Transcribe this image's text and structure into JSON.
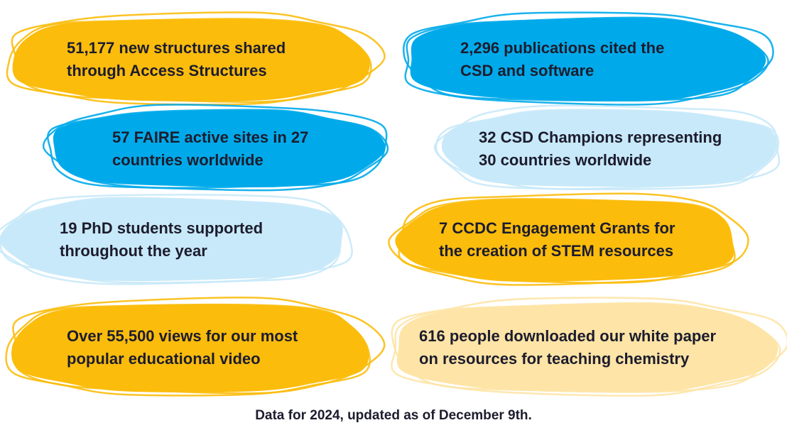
{
  "colors": {
    "yellow": "#fbbc0c",
    "blue": "#00aaea",
    "light_blue": "#c8e9f9",
    "pale_yellow": "#fee4a6",
    "text": "#1c1c2e"
  },
  "stats": [
    {
      "id": "structures",
      "text": "51,177 new structures shared\nthrough Access Structures",
      "color": "#fbbc0c"
    },
    {
      "id": "publications",
      "text": "2,296 publications cited the\nCSD and software",
      "color": "#00aaea"
    },
    {
      "id": "faire",
      "text": "57 FAIRE active sites in 27\ncountries worldwide",
      "color": "#00aaea"
    },
    {
      "id": "champions",
      "text": "32 CSD Champions representing\n30 countries worldwide",
      "color": "#c8e9f9"
    },
    {
      "id": "phd",
      "text": "19 PhD students supported\nthroughout the year",
      "color": "#c8e9f9"
    },
    {
      "id": "grants",
      "text": "7 CCDC Engagement Grants for\nthe creation of STEM resources",
      "color": "#fbbc0c"
    },
    {
      "id": "video",
      "text": "Over 55,500 views for our most\npopular educational video",
      "color": "#fbbc0c"
    },
    {
      "id": "whitepaper",
      "text": "616 people downloaded our white paper\non resources for teaching chemistry",
      "color": "#fee4a6"
    }
  ],
  "footnote": "Data for 2024, updated as of December 9th."
}
